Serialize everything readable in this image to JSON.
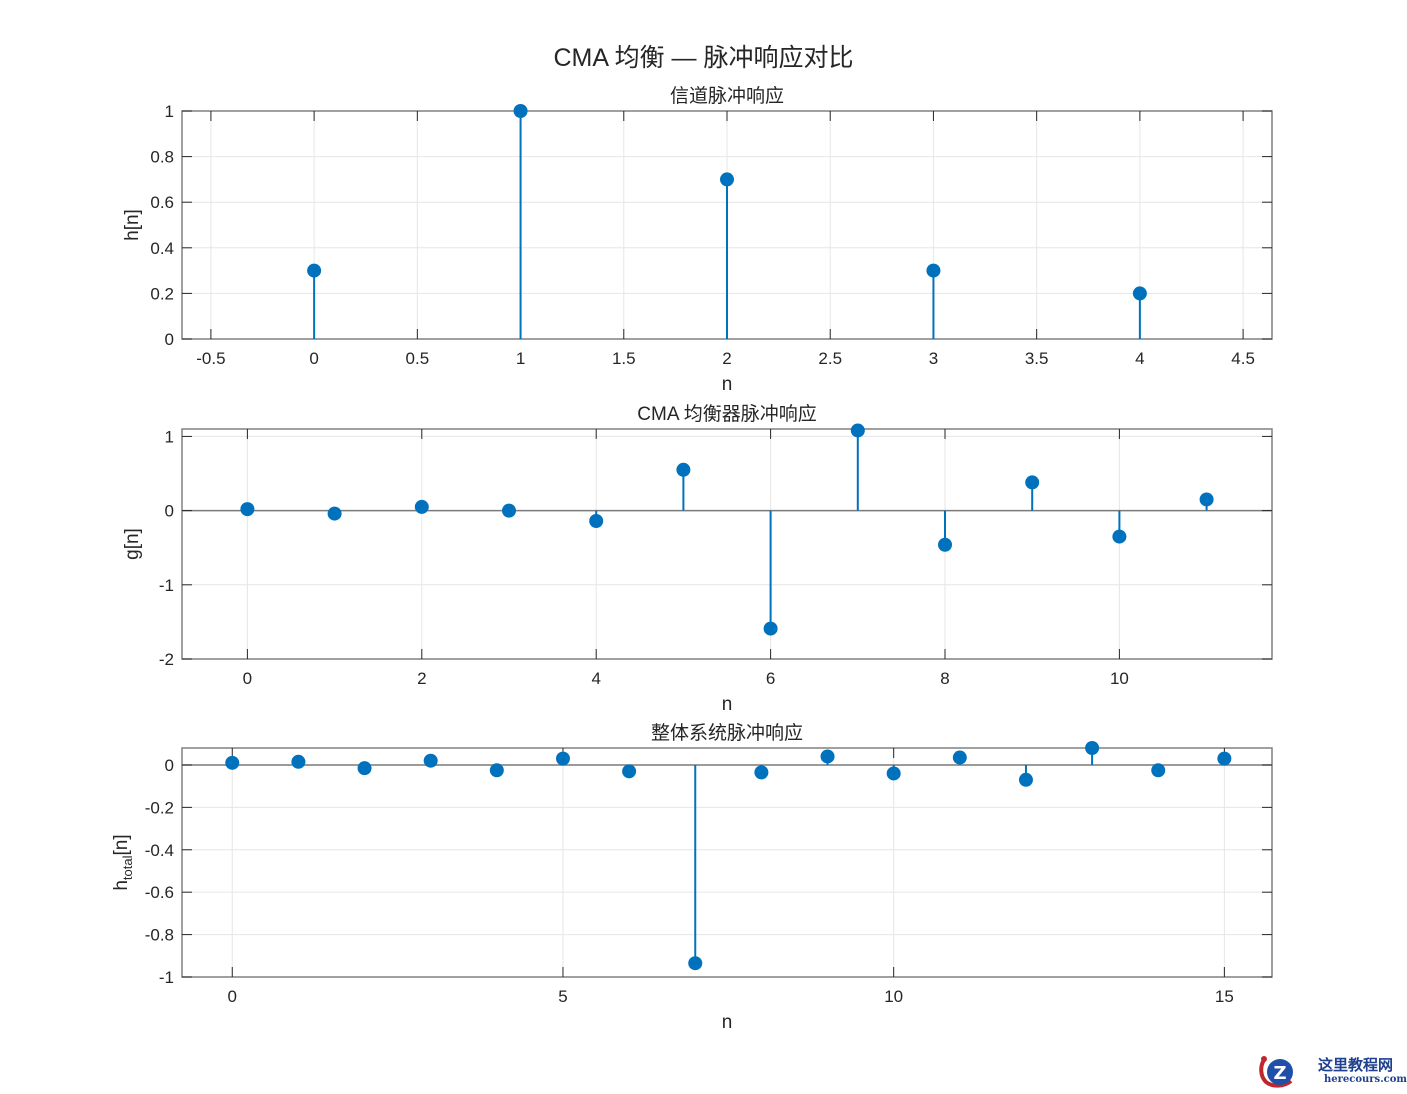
{
  "figure": {
    "suptitle": "CMA 均衡 — 脉冲响应对比",
    "stem_color": "#0072BD",
    "axes_color": "#808080",
    "grid_color": "#e6e6e6",
    "text_color": "#262626"
  },
  "chart_data": [
    {
      "type": "stem",
      "title": "信道脉冲响应",
      "xlabel": "n",
      "ylabel": "h[n]",
      "x": [
        0,
        1,
        2,
        3,
        4
      ],
      "values": [
        0.3,
        1.0,
        0.7,
        0.3,
        0.2
      ],
      "xlim": [
        -0.64,
        4.64
      ],
      "ylim": [
        0,
        1
      ],
      "xticks": [
        -0.5,
        0,
        0.5,
        1,
        1.5,
        2,
        2.5,
        3,
        3.5,
        4,
        4.5
      ],
      "xtick_labels": [
        "-0.5",
        "0",
        "0.5",
        "1",
        "1.5",
        "2",
        "2.5",
        "3",
        "3.5",
        "4",
        "4.5"
      ],
      "yticks": [
        0,
        0.2,
        0.4,
        0.6,
        0.8,
        1
      ],
      "ytick_labels": [
        "0",
        "0.2",
        "0.4",
        "0.6",
        "0.8",
        "1"
      ],
      "grid": true
    },
    {
      "type": "stem",
      "title": "CMA 均衡器脉冲响应",
      "xlabel": "n",
      "ylabel": "g[n]",
      "x": [
        0,
        1,
        2,
        3,
        4,
        5,
        6,
        7,
        8,
        9,
        10,
        11
      ],
      "values": [
        0.02,
        -0.04,
        0.05,
        0.0,
        -0.14,
        0.55,
        -1.59,
        1.08,
        -0.46,
        0.38,
        -0.35,
        0.15
      ],
      "xlim": [
        -0.75,
        11.75
      ],
      "ylim": [
        -2,
        1.1
      ],
      "xticks": [
        0,
        2,
        4,
        6,
        8,
        10
      ],
      "xtick_labels": [
        "0",
        "2",
        "4",
        "6",
        "8",
        "10"
      ],
      "yticks": [
        -2,
        -1,
        0,
        1
      ],
      "ytick_labels": [
        "-2",
        "-1",
        "0",
        "1"
      ],
      "grid": true
    },
    {
      "type": "stem",
      "title": "整体系统脉冲响应",
      "xlabel": "n",
      "ylabel": "h_total[n]",
      "ylabel_base": "h",
      "ylabel_sub": "total",
      "ylabel_suffix": "[n]",
      "x": [
        0,
        1,
        2,
        3,
        4,
        5,
        6,
        7,
        8,
        9,
        10,
        11,
        12,
        13,
        14,
        15
      ],
      "values": [
        0.01,
        0.015,
        -0.015,
        0.02,
        -0.025,
        0.03,
        -0.03,
        -0.935,
        -0.035,
        0.04,
        -0.04,
        0.035,
        -0.07,
        0.08,
        -0.025,
        0.03
      ],
      "xlim": [
        -0.76,
        15.72
      ],
      "ylim": [
        -1,
        0.08
      ],
      "xticks": [
        0,
        5,
        10,
        15
      ],
      "xtick_labels": [
        "0",
        "5",
        "10",
        "15"
      ],
      "yticks": [
        -1,
        -0.8,
        -0.6,
        -0.4,
        -0.2,
        0
      ],
      "ytick_labels": [
        "-1",
        "-0.8",
        "-0.6",
        "-0.4",
        "-0.2",
        "0"
      ],
      "grid": true
    }
  ],
  "watermark": {
    "text_cn": "这里教程网",
    "text_en": "herecours.com",
    "icon": "z-logo-icon"
  }
}
